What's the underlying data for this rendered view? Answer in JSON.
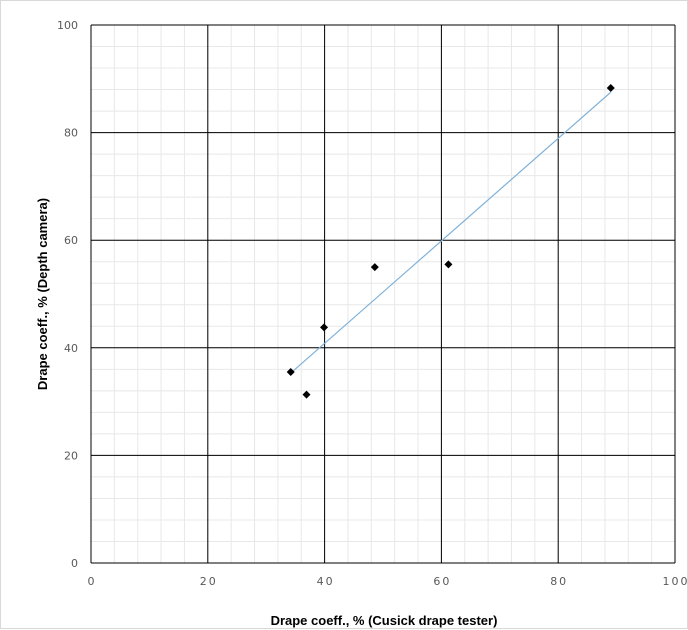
{
  "chart_data": {
    "type": "scatter",
    "title": "",
    "xlabel": "Drape coeff., % (Cusick drape tester)",
    "ylabel": "Drape coeff., % (Depth camera)",
    "xlim": [
      0,
      100
    ],
    "ylim": [
      0,
      100
    ],
    "x_ticks": [
      "0",
      "20",
      "40",
      "60",
      "80",
      "100"
    ],
    "y_ticks": [
      "0",
      "20",
      "40",
      "60",
      "80",
      "100"
    ],
    "grid": true,
    "legend": "none",
    "series": [
      {
        "points": [
          {
            "x": 34.2,
            "y": 35.5
          },
          {
            "x": 36.9,
            "y": 31.3
          },
          {
            "x": 39.9,
            "y": 43.8
          },
          {
            "x": 48.6,
            "y": 55.0
          },
          {
            "x": 61.2,
            "y": 55.5
          },
          {
            "x": 89.0,
            "y": 88.3
          }
        ],
        "marker_color": "#000000",
        "trendline": {
          "from": {
            "x": 34.2,
            "y": 35.3
          },
          "to": {
            "x": 89.0,
            "y": 87.5
          },
          "color": "#7fb1d9"
        }
      }
    ],
    "colors": {
      "major_grid": "#000000",
      "minor_grid": "#e8e8e8",
      "tick_text": "#595959"
    }
  }
}
